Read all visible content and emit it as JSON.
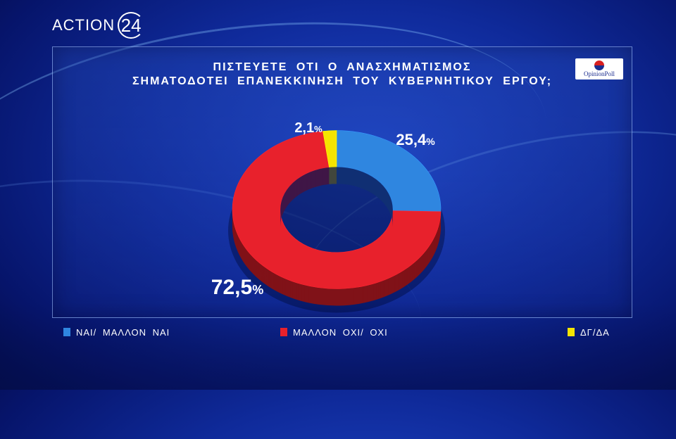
{
  "brand": {
    "name": "ACTION",
    "number": "24"
  },
  "poll_logo": {
    "text": "OpinionPoll"
  },
  "chart_data": {
    "type": "pie",
    "variant": "donut-3d",
    "title_lines": [
      "ΠΙΣΤΕΥΕΤΕ ΟΤΙ Ο ΑΝΑΣΧΗΜΑΤΙΣΜΟΣ",
      "ΣΗΜΑΤΟΔΟΤΕΙ ΕΠΑΝΕΚΚΙΝΗΣΗ ΤΟΥ ΚΥΒΕΡΝΗΤΙΚΟΥ ΕΡΓΟΥ;"
    ],
    "slices": [
      {
        "label": "ΝΑΙ/ ΜΑΛΛΟΝ ΝΑΙ",
        "value": 25.4,
        "display": "25,4",
        "color": "#2f86e0"
      },
      {
        "label": "ΜΑΛΛΟΝ ΟΧΙ/ ΟΧΙ",
        "value": 72.5,
        "display": "72,5",
        "color": "#e8212c"
      },
      {
        "label": "ΔΓ/ΔΑ",
        "value": 2.1,
        "display": "2,1",
        "color": "#f4e400"
      }
    ],
    "unit": "%",
    "legend_position": "bottom"
  }
}
